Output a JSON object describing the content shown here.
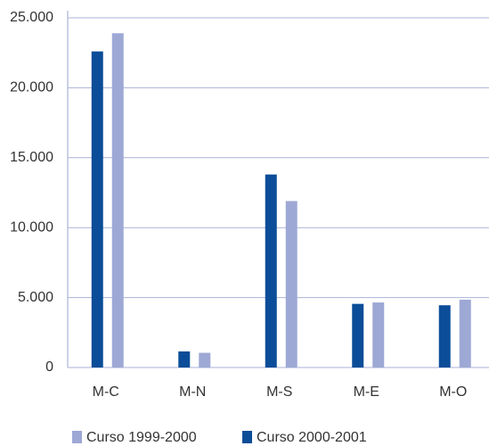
{
  "chart_data": {
    "type": "bar",
    "categories": [
      "M-C",
      "M-N",
      "M-S",
      "M-E",
      "M-O"
    ],
    "series": [
      {
        "name": "Curso 2000-2001",
        "color": "#0b4d98",
        "values": [
          22600,
          1150,
          13800,
          4550,
          4450
        ]
      },
      {
        "name": "Curso 1999-2000",
        "color": "#9ea8d5",
        "values": [
          23900,
          1050,
          11900,
          4650,
          4850
        ]
      }
    ],
    "ylim": [
      0,
      25000
    ],
    "yticks": [
      0,
      {
        "value": 5000,
        "label": "5.000"
      },
      {
        "value": 10000,
        "label": "10.000"
      },
      {
        "value": 15000,
        "label": "15.000"
      },
      {
        "value": 20000,
        "label": "20.000"
      },
      {
        "value": 25000,
        "label": "25.000"
      }
    ],
    "grid": true,
    "legend": "bottom"
  }
}
